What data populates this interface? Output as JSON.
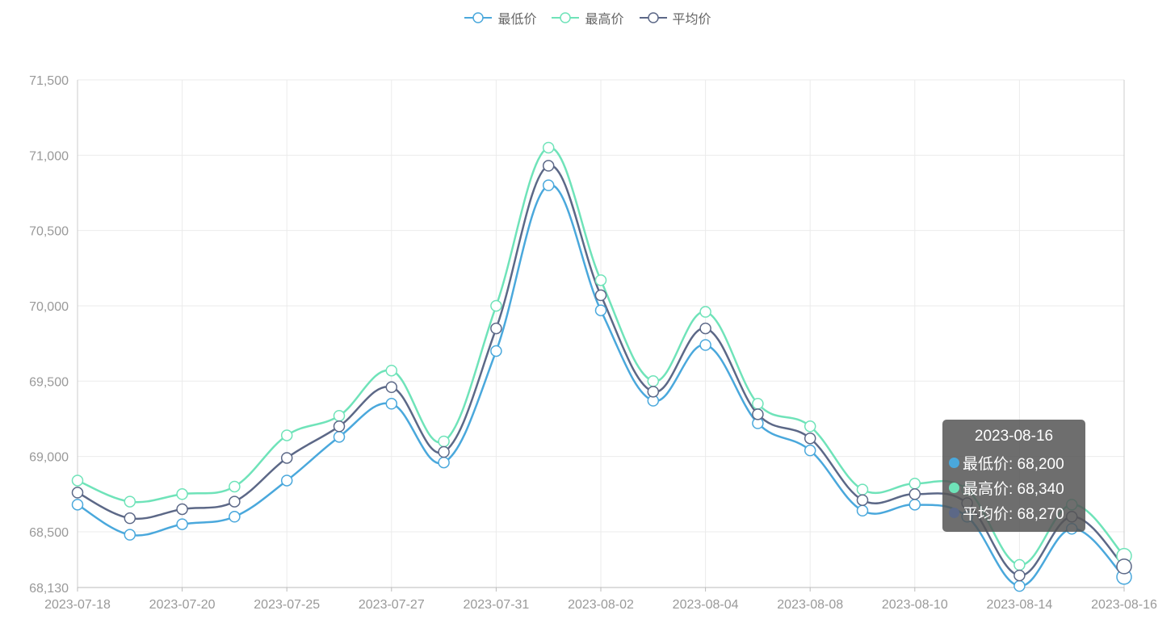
{
  "legend": [
    {
      "name": "最低价",
      "color": "#4aa8dc"
    },
    {
      "name": "最高价",
      "color": "#6fe3b9"
    },
    {
      "name": "平均价",
      "color": "#5c6887"
    }
  ],
  "tooltip": {
    "date": "2023-08-16",
    "rows": [
      {
        "label": "最低价: 68,200",
        "color": "#4aa8dc"
      },
      {
        "label": "最高价: 68,340",
        "color": "#6fe3b9"
      },
      {
        "label": "平均价: 68,270",
        "color": "#5c6887"
      }
    ]
  },
  "chart_data": {
    "type": "line",
    "smooth": true,
    "grid": true,
    "legend_position": "top-center",
    "ylim": [
      68130,
      71500
    ],
    "yticks": [
      "71,500",
      "71,000",
      "70,500",
      "70,000",
      "69,500",
      "69,000",
      "68,500",
      "68,130"
    ],
    "ytick_values": [
      71500,
      71000,
      70500,
      70000,
      69500,
      69000,
      68500,
      68130
    ],
    "x_labels_shown": [
      "2023-07-18",
      "2023-07-20",
      "2023-07-25",
      "2023-07-27",
      "2023-07-31",
      "2023-08-02",
      "2023-08-04",
      "2023-08-08",
      "2023-08-10",
      "2023-08-14",
      "2023-08-16"
    ],
    "point_count": 21,
    "series": [
      {
        "name": "最低价",
        "color": "#4aa8dc",
        "values": [
          68680,
          68480,
          68550,
          68600,
          68840,
          69130,
          69350,
          68960,
          69700,
          70800,
          69970,
          69370,
          69740,
          69220,
          69040,
          68640,
          68680,
          68600,
          68140,
          68520,
          68200
        ]
      },
      {
        "name": "最高价",
        "color": "#6fe3b9",
        "values": [
          68840,
          68700,
          68750,
          68800,
          69140,
          69270,
          69570,
          69100,
          70000,
          71050,
          70170,
          69500,
          69960,
          69350,
          69200,
          68780,
          68820,
          68780,
          68280,
          68680,
          68340
        ]
      },
      {
        "name": "平均价",
        "color": "#5c6887",
        "values": [
          68760,
          68590,
          68650,
          68700,
          68990,
          69200,
          69460,
          69030,
          69850,
          70930,
          70070,
          69430,
          69850,
          69280,
          69120,
          68710,
          68750,
          68690,
          68210,
          68600,
          68270
        ]
      }
    ]
  }
}
